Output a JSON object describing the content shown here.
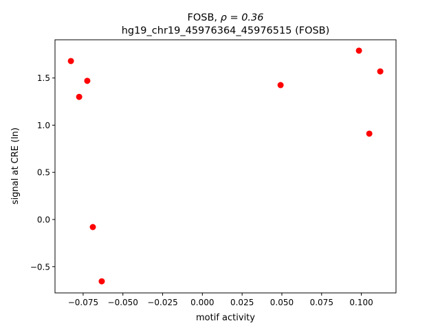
{
  "chart_data": {
    "type": "scatter",
    "title_line1_prefix": "FOSB, ",
    "title_line1_rho": "ρ = 0.36",
    "title_line2": "hg19_chr19_45976364_45976515 (FOSB)",
    "xlabel": "motif activity",
    "ylabel": "signal at CRE (ln)",
    "xlim": [
      -0.0927,
      0.1218
    ],
    "ylim": [
      -0.778,
      1.905
    ],
    "xticks": [
      -0.075,
      -0.05,
      -0.025,
      0.0,
      0.025,
      0.05,
      0.075,
      0.1
    ],
    "xtick_labels": [
      "−0.075",
      "−0.050",
      "−0.025",
      "0.000",
      "0.025",
      "0.050",
      "0.075",
      "0.100"
    ],
    "yticks": [
      -0.5,
      0.0,
      0.5,
      1.0,
      1.5
    ],
    "ytick_labels": [
      "−0.5",
      "0.0",
      "0.5",
      "1.0",
      "1.5"
    ],
    "grid": false,
    "marker_color": "#ff0000",
    "points": [
      {
        "x": -0.0827,
        "y": 1.68
      },
      {
        "x": -0.0724,
        "y": 1.47
      },
      {
        "x": -0.0775,
        "y": 1.3
      },
      {
        "x": -0.0689,
        "y": -0.08
      },
      {
        "x": -0.0633,
        "y": -0.655
      },
      {
        "x": 0.0492,
        "y": 1.425
      },
      {
        "x": 0.0985,
        "y": 1.79
      },
      {
        "x": 0.1119,
        "y": 1.57
      },
      {
        "x": 0.105,
        "y": 0.91
      }
    ]
  }
}
